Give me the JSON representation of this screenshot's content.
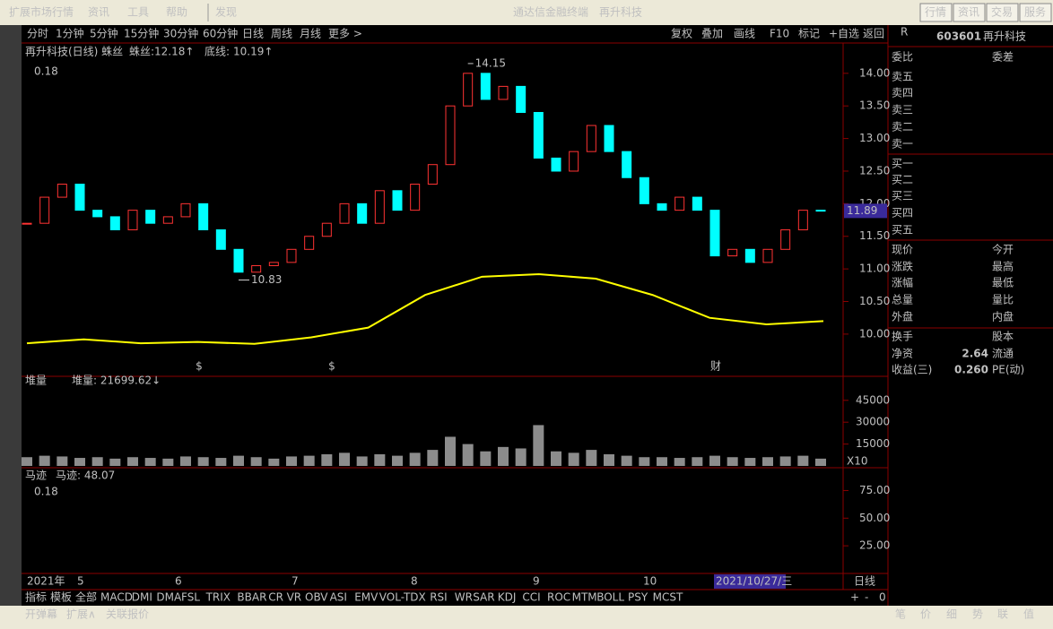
{
  "menu": {
    "items": [
      "扩展市场行情",
      "资讯",
      "工具",
      "帮助",
      "发现"
    ],
    "center": [
      "通达信金融终端",
      "再升科技"
    ],
    "buttons": [
      "行情",
      "资讯",
      "交易",
      "服务"
    ]
  },
  "toolbar": {
    "periods": [
      "分时",
      "1分钟",
      "5分钟",
      "15分钟",
      "30分钟",
      "60分钟",
      "日线",
      "周线",
      "月线",
      "更多 >"
    ],
    "actions": [
      "复权",
      "叠加",
      "画线",
      "F10",
      "标记",
      "+自选",
      "返回"
    ]
  },
  "chart_data": [
    {
      "type": "candlestick",
      "title": "再升科技(日线) 蛛丝",
      "legend": [
        {
          "label": "蛛丝:",
          "value": "12.18↑"
        },
        {
          "label": "底线:",
          "value": "10.19↑"
        }
      ],
      "corner_value": 0.18,
      "high_label": 14.15,
      "low_label": 10.83,
      "last_price": 11.89,
      "closes": [
        11.7,
        12.1,
        12.3,
        11.9,
        11.8,
        11.6,
        11.9,
        11.7,
        11.8,
        12.0,
        11.6,
        11.3,
        10.95,
        11.05,
        11.1,
        11.3,
        11.5,
        11.7,
        12.0,
        11.7,
        12.2,
        11.9,
        12.3,
        12.6,
        13.5,
        14.0,
        13.6,
        13.8,
        13.4,
        12.7,
        12.5,
        12.8,
        13.2,
        12.8,
        12.4,
        12.0,
        11.9,
        12.1,
        11.9,
        11.2,
        11.3,
        11.1,
        11.3,
        11.6,
        11.9,
        11.89
      ],
      "indicator_line": [
        9.86,
        9.92,
        9.86,
        9.88,
        9.85,
        9.95,
        10.1,
        10.6,
        10.88,
        10.92,
        10.85,
        10.6,
        10.25,
        10.15,
        10.2
      ],
      "ylim": [
        9.38,
        14.41
      ],
      "yticks": [
        {
          "value": 10,
          "label": "10.00"
        },
        {
          "value": 10.5,
          "label": "10.50"
        },
        {
          "value": 11,
          "label": "11.00"
        },
        {
          "value": 11.5,
          "label": "11.50"
        },
        {
          "value": 12,
          "label": "12.00"
        },
        {
          "value": 12.5,
          "label": "12.50"
        },
        {
          "value": 13,
          "label": "13.00"
        },
        {
          "value": 13.5,
          "label": "13.50"
        },
        {
          "value": 14,
          "label": "14.00"
        }
      ],
      "event_marks": [
        "$",
        "$",
        "财"
      ]
    },
    {
      "type": "bar",
      "title": "堆量",
      "legend": "堆量: 21699.62↓",
      "unit_label": "X10",
      "values": [
        6000,
        7000,
        6500,
        5500,
        6000,
        5000,
        6000,
        5500,
        5000,
        6500,
        6000,
        5500,
        7000,
        6000,
        5000,
        6500,
        7000,
        8000,
        9000,
        6500,
        8000,
        7000,
        9000,
        11000,
        20000,
        15000,
        10000,
        13000,
        12000,
        28000,
        10000,
        9000,
        11000,
        8000,
        7000,
        6000,
        6000,
        5500,
        6000,
        7000,
        6000,
        5500,
        6000,
        6500,
        7000,
        5000
      ],
      "ylim": [
        0,
        59000
      ],
      "yticks": [
        15000,
        30000,
        45000
      ]
    },
    {
      "type": "indicator",
      "title": "马迹",
      "legend": "马迹: 48.07",
      "corner_value": 0.18,
      "ylim": [
        0,
        94
      ],
      "yticks": [
        {
          "value": 25,
          "label": "25.00"
        },
        {
          "value": 50,
          "label": "50.00"
        },
        {
          "value": 75,
          "label": "75.00"
        }
      ]
    }
  ],
  "date_axis": [
    "2021年",
    "5",
    "6",
    "7",
    "8",
    "9",
    "10",
    "2021/10/27/三",
    "日线"
  ],
  "indicator_tabs": [
    "指标",
    "模板",
    "全部",
    "MACD",
    "DMI",
    "DMA",
    "FSL",
    "TRIX",
    "BBAR",
    "CR",
    "VR",
    "OBV",
    "ASI",
    "EMV",
    "VOL-TDX",
    "RSI",
    "WR",
    "SAR",
    "KDJ",
    "CCI",
    "ROC",
    "MTM",
    "BOLL",
    "PSY",
    "MCST"
  ],
  "zoom": [
    "+",
    "-",
    "0"
  ],
  "status": [
    "开弹幕",
    "扩展∧",
    "关联报价"
  ],
  "side_tabs": [
    "笔",
    "价",
    "细",
    "势",
    "联",
    "值"
  ],
  "quote": {
    "code": "603601",
    "name": "再升科技",
    "rows": [
      {
        "l": "委比",
        "r": "委差"
      },
      {
        "l": "卖五"
      },
      {
        "l": "卖四"
      },
      {
        "l": "卖三"
      },
      {
        "l": "卖二"
      },
      {
        "l": "卖一"
      },
      {
        "l": "买一"
      },
      {
        "l": "买二"
      },
      {
        "l": "买三"
      },
      {
        "l": "买四"
      },
      {
        "l": "买五"
      },
      {
        "l": "现价",
        "r": "今开"
      },
      {
        "l": "涨跌",
        "r": "最高"
      },
      {
        "l": "涨幅",
        "r": "最低"
      },
      {
        "l": "总量",
        "r": "量比"
      },
      {
        "l": "外盘",
        "r": "内盘"
      },
      {
        "l": "换手",
        "r": "股本"
      },
      {
        "l": "净资",
        "lv": "2.64",
        "r": "流通"
      },
      {
        "l": "收益(三)",
        "lv": "0.260",
        "r": "PE(动)"
      }
    ]
  }
}
